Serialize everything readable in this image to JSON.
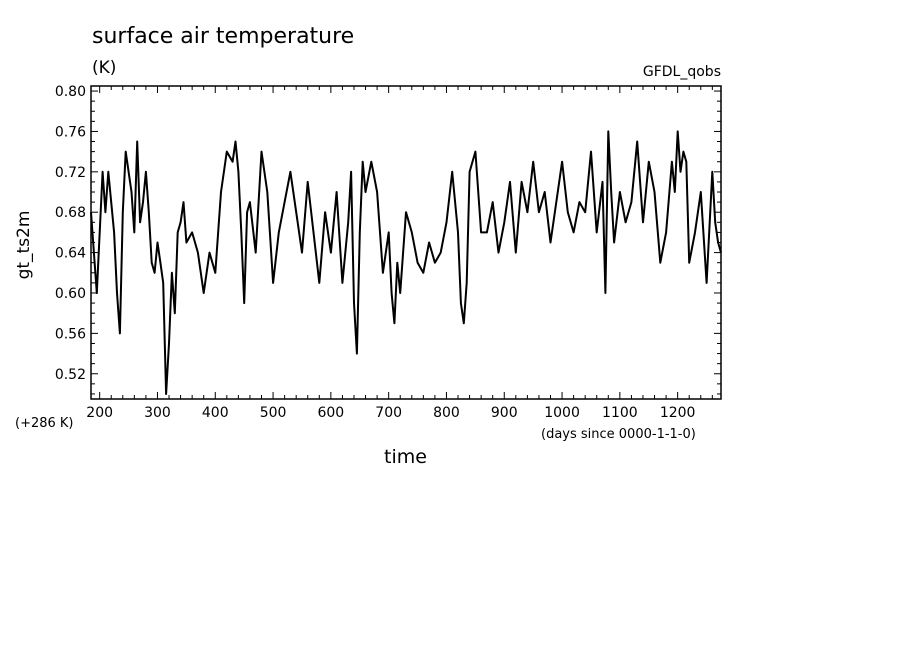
{
  "chart_data": {
    "type": "line",
    "title": "surface air temperature",
    "units": "(K)",
    "source": "GFDL_qobs",
    "ylabel": "gt_ts2m",
    "xlabel": "time",
    "x_units": "(days since 0000-1-1-0)",
    "y_offset_label": "(+286 K)",
    "xlim": [
      185,
      1275
    ],
    "ylim": [
      0.495,
      0.805
    ],
    "x_ticks": [
      200,
      300,
      400,
      500,
      600,
      700,
      800,
      900,
      1000,
      1100,
      1200
    ],
    "x_tick_labels": [
      "200",
      "300",
      "400",
      "500",
      "600",
      "700",
      "800",
      "900",
      "1000",
      "1100",
      "1200"
    ],
    "y_ticks": [
      0.52,
      0.56,
      0.6,
      0.64,
      0.68,
      0.72,
      0.76,
      0.8
    ],
    "y_tick_labels": [
      "0.52",
      "0.56",
      "0.60",
      "0.64",
      "0.68",
      "0.72",
      "0.76",
      "0.80"
    ],
    "series": [
      {
        "name": "gt_ts2m",
        "x": [
          185,
          195,
          205,
          210,
          215,
          220,
          225,
          230,
          235,
          240,
          245,
          255,
          260,
          265,
          270,
          275,
          280,
          285,
          290,
          295,
          300,
          305,
          310,
          315,
          320,
          325,
          330,
          335,
          340,
          345,
          350,
          360,
          370,
          380,
          390,
          400,
          410,
          420,
          430,
          435,
          440,
          445,
          450,
          455,
          460,
          470,
          480,
          490,
          500,
          510,
          520,
          530,
          540,
          550,
          560,
          570,
          580,
          590,
          600,
          610,
          620,
          630,
          635,
          640,
          645,
          650,
          655,
          660,
          670,
          680,
          690,
          700,
          705,
          710,
          715,
          720,
          730,
          740,
          750,
          760,
          770,
          780,
          790,
          800,
          810,
          820,
          825,
          830,
          835,
          840,
          850,
          860,
          870,
          880,
          890,
          900,
          910,
          920,
          930,
          940,
          950,
          960,
          970,
          980,
          990,
          1000,
          1010,
          1020,
          1030,
          1040,
          1050,
          1060,
          1070,
          1075,
          1080,
          1085,
          1090,
          1100,
          1110,
          1120,
          1130,
          1140,
          1150,
          1160,
          1170,
          1180,
          1190,
          1195,
          1200,
          1205,
          1210,
          1215,
          1220,
          1230,
          1240,
          1250,
          1260,
          1265,
          1270,
          1275
        ],
        "values": [
          0.68,
          0.6,
          0.72,
          0.68,
          0.72,
          0.69,
          0.66,
          0.6,
          0.56,
          0.68,
          0.74,
          0.7,
          0.66,
          0.75,
          0.67,
          0.69,
          0.72,
          0.68,
          0.63,
          0.62,
          0.65,
          0.63,
          0.61,
          0.5,
          0.55,
          0.62,
          0.58,
          0.66,
          0.67,
          0.69,
          0.65,
          0.66,
          0.64,
          0.6,
          0.64,
          0.62,
          0.7,
          0.74,
          0.73,
          0.75,
          0.72,
          0.66,
          0.59,
          0.68,
          0.69,
          0.64,
          0.74,
          0.7,
          0.61,
          0.66,
          0.69,
          0.72,
          0.68,
          0.64,
          0.71,
          0.66,
          0.61,
          0.68,
          0.64,
          0.7,
          0.61,
          0.67,
          0.72,
          0.59,
          0.54,
          0.66,
          0.73,
          0.7,
          0.73,
          0.7,
          0.62,
          0.66,
          0.6,
          0.57,
          0.63,
          0.6,
          0.68,
          0.66,
          0.63,
          0.62,
          0.65,
          0.63,
          0.64,
          0.67,
          0.72,
          0.66,
          0.59,
          0.57,
          0.61,
          0.72,
          0.74,
          0.66,
          0.66,
          0.69,
          0.64,
          0.67,
          0.71,
          0.64,
          0.71,
          0.68,
          0.73,
          0.68,
          0.7,
          0.65,
          0.69,
          0.73,
          0.68,
          0.66,
          0.69,
          0.68,
          0.74,
          0.66,
          0.71,
          0.6,
          0.76,
          0.7,
          0.65,
          0.7,
          0.67,
          0.69,
          0.75,
          0.67,
          0.73,
          0.7,
          0.63,
          0.66,
          0.73,
          0.7,
          0.76,
          0.72,
          0.74,
          0.73,
          0.63,
          0.66,
          0.7,
          0.61,
          0.72,
          0.67,
          0.65,
          0.64
        ]
      }
    ]
  }
}
